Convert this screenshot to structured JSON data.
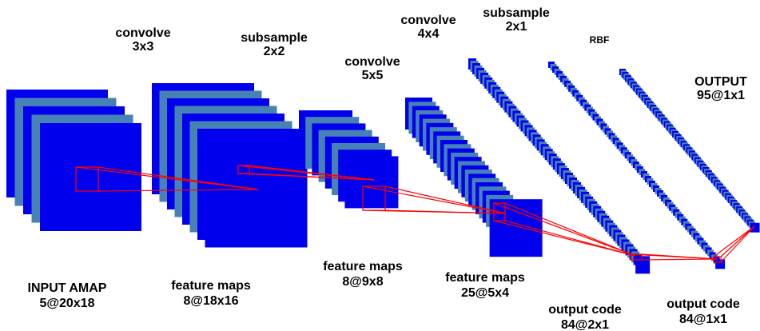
{
  "colors": {
    "map_dark": "#0000ee",
    "map_light": "#4682b4",
    "connection": "#ff0000"
  },
  "operations": {
    "conv1": [
      "convolve",
      "3x3"
    ],
    "sub1": [
      "subsample",
      "2x2"
    ],
    "conv2": [
      "convolve",
      "5x5"
    ],
    "conv3": [
      "convolve",
      "4x4"
    ],
    "sub2": [
      "subsample",
      "2x1"
    ],
    "rbf": [
      "RBF"
    ],
    "output": [
      "OUTPUT",
      "95@1x1"
    ]
  },
  "layers": {
    "input": [
      "INPUT AMAP",
      "5@20x18"
    ],
    "fm1": [
      "feature maps",
      "8@18x16"
    ],
    "fm2": [
      "feature maps",
      "8@9x8"
    ],
    "fm3": [
      "feature maps",
      "25@5x4"
    ],
    "code1": [
      "output code",
      "84@2x1"
    ],
    "code2": [
      "output code",
      "84@1x1"
    ]
  }
}
